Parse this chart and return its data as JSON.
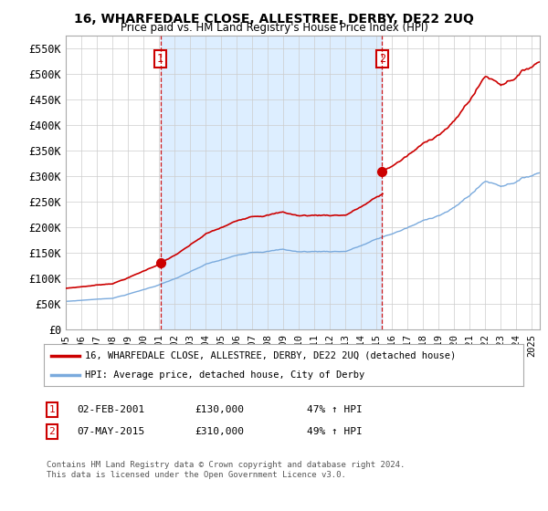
{
  "title": "16, WHARFEDALE CLOSE, ALLESTREE, DERBY, DE22 2UQ",
  "subtitle": "Price paid vs. HM Land Registry's House Price Index (HPI)",
  "ylim": [
    0,
    575000
  ],
  "yticks": [
    0,
    50000,
    100000,
    150000,
    200000,
    250000,
    300000,
    350000,
    400000,
    450000,
    500000,
    550000
  ],
  "ytick_labels": [
    "£0",
    "£50K",
    "£100K",
    "£150K",
    "£200K",
    "£250K",
    "£300K",
    "£350K",
    "£400K",
    "£450K",
    "£500K",
    "£550K"
  ],
  "hpi_color": "#7aaadd",
  "price_color": "#cc0000",
  "dashed_line_color": "#cc0000",
  "shade_color": "#ddeeff",
  "sale1_t": 2001.085,
  "sale1_price": 130000,
  "sale2_t": 2015.354,
  "sale2_price": 310000,
  "legend_property": "16, WHARFEDALE CLOSE, ALLESTREE, DERBY, DE22 2UQ (detached house)",
  "legend_hpi": "HPI: Average price, detached house, City of Derby",
  "footnote": "Contains HM Land Registry data © Crown copyright and database right 2024.\nThis data is licensed under the Open Government Licence v3.0.",
  "table_rows": [
    {
      "num": "1",
      "date": "02-FEB-2001",
      "price": "£130,000",
      "pct": "47% ↑ HPI"
    },
    {
      "num": "2",
      "date": "07-MAY-2015",
      "price": "£310,000",
      "pct": "49% ↑ HPI"
    }
  ],
  "xmin": 1995.0,
  "xmax": 2025.5
}
